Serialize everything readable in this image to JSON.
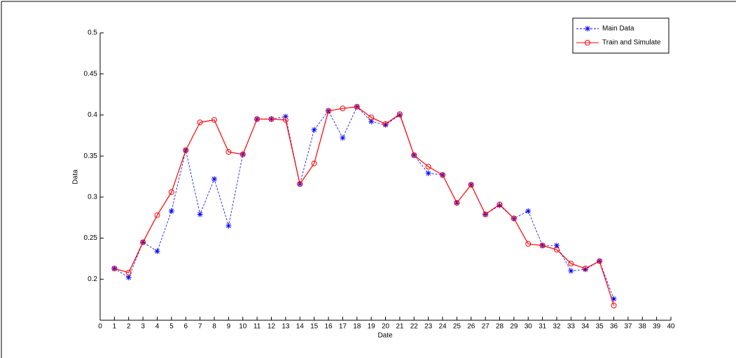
{
  "chart_data": {
    "type": "line",
    "xlabel": "Date",
    "ylabel": "Data",
    "x": [
      1,
      2,
      3,
      4,
      5,
      6,
      7,
      8,
      9,
      10,
      11,
      12,
      13,
      14,
      15,
      16,
      17,
      18,
      19,
      20,
      21,
      22,
      23,
      24,
      25,
      26,
      27,
      28,
      29,
      30,
      31,
      32,
      33,
      34,
      35,
      36
    ],
    "series": [
      {
        "name": "Main Data",
        "color": "#0000ff",
        "marker": "*",
        "dash": true,
        "values": [
          0.213,
          0.202,
          0.245,
          0.234,
          0.283,
          0.357,
          0.279,
          0.322,
          0.265,
          0.352,
          0.395,
          0.395,
          0.398,
          0.316,
          0.382,
          0.405,
          0.372,
          0.41,
          0.392,
          0.388,
          0.4,
          0.351,
          0.329,
          0.327,
          0.293,
          0.315,
          0.279,
          0.29,
          0.274,
          0.283,
          0.241,
          0.241,
          0.21,
          0.212,
          0.222,
          0.176
        ]
      },
      {
        "name": "Train and Simulate",
        "color": "#ff0000",
        "marker": "o",
        "dash": false,
        "values": [
          0.213,
          0.208,
          0.245,
          0.278,
          0.306,
          0.357,
          0.391,
          0.394,
          0.355,
          0.352,
          0.395,
          0.395,
          0.394,
          0.316,
          0.341,
          0.405,
          0.408,
          0.41,
          0.397,
          0.389,
          0.401,
          0.351,
          0.337,
          0.327,
          0.293,
          0.315,
          0.279,
          0.291,
          0.274,
          0.243,
          0.241,
          0.236,
          0.219,
          0.213,
          0.222,
          0.168
        ]
      }
    ],
    "xlim": [
      0,
      40
    ],
    "xticks": [
      0,
      1,
      2,
      3,
      4,
      5,
      6,
      7,
      8,
      9,
      10,
      11,
      12,
      13,
      14,
      15,
      16,
      17,
      18,
      19,
      20,
      21,
      22,
      23,
      24,
      25,
      26,
      27,
      28,
      29,
      30,
      31,
      32,
      33,
      34,
      35,
      36,
      37,
      38,
      39,
      40
    ],
    "ylim": [
      0.15,
      0.5
    ],
    "yticks": [
      0.2,
      0.25,
      0.3,
      0.35,
      0.4,
      0.45,
      0.5
    ],
    "legend": "northeast"
  }
}
